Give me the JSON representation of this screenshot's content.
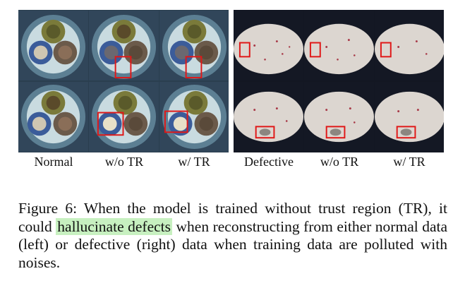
{
  "figure": {
    "columns": [
      "Normal",
      "w/o TR",
      "w/ TR",
      "Defective",
      "w/o TR",
      "w/ TR"
    ],
    "caption_prefix": "Figure 6:",
    "caption_before": "When the model is trained without trust region (TR), it could",
    "caption_highlight": "hallucinate defects",
    "caption_after": "when reconstructing from either normal data (left) or defective (right) data when training data are polluted with noises.",
    "highlight_color": "#c7f0c0",
    "marker_color": "#e01818"
  }
}
